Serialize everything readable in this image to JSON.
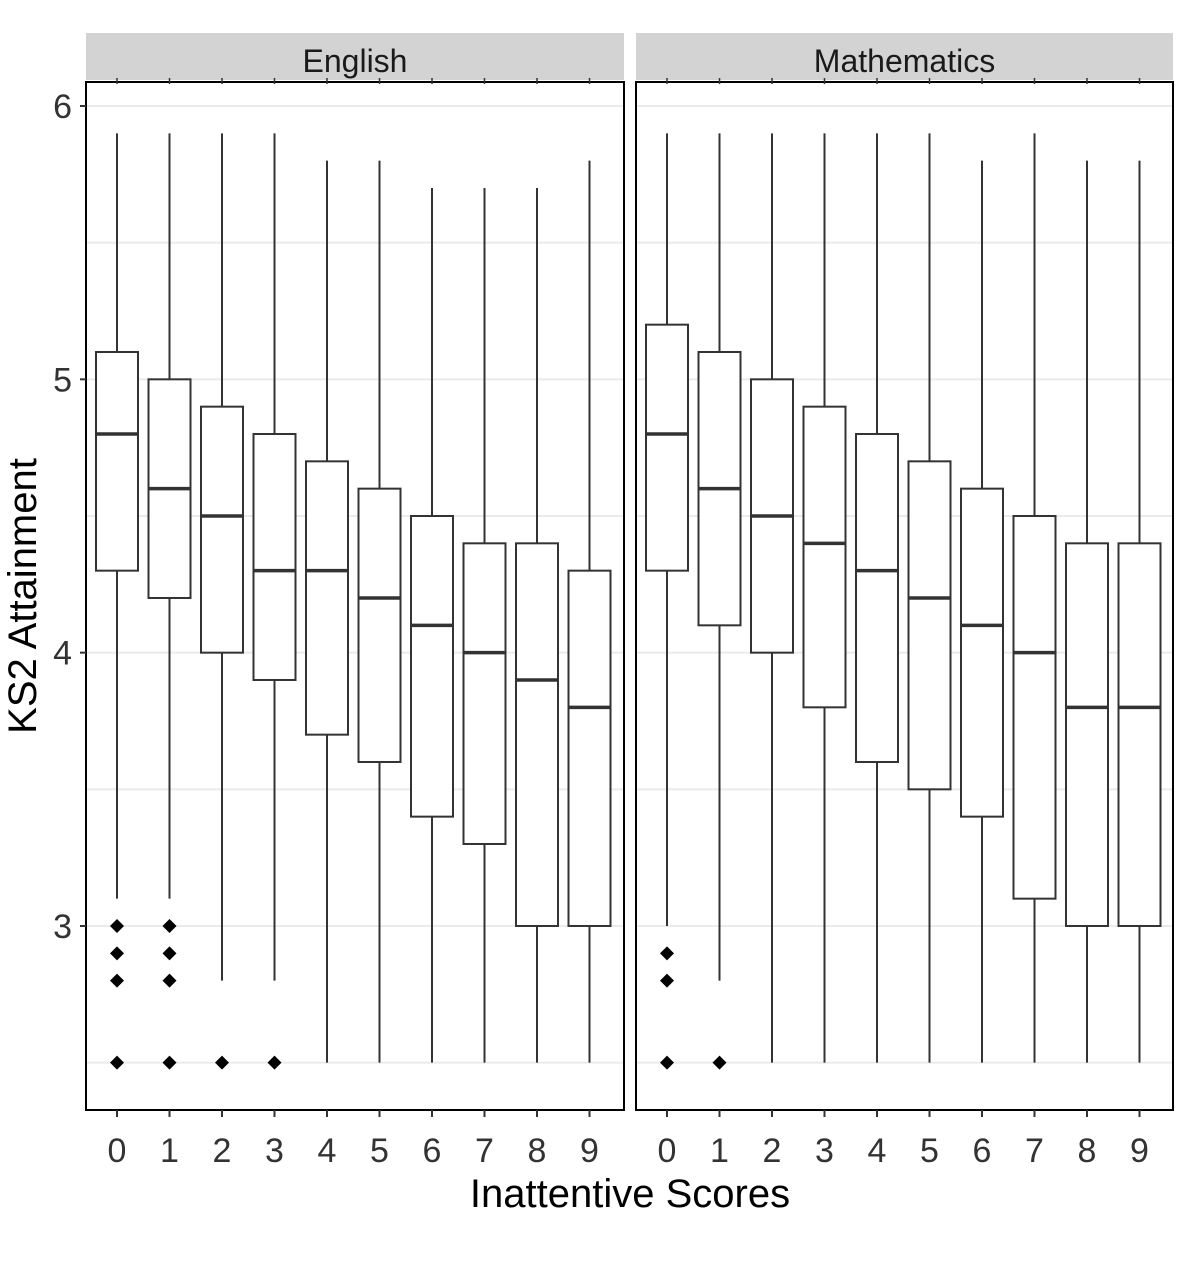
{
  "chart_data": {
    "type": "boxplot",
    "xlabel": "Inattentive Scores",
    "ylabel": "KS2 Attainment",
    "ylim": [
      2.33,
      6.1
    ],
    "yticks": [
      3,
      4,
      5,
      6
    ],
    "categories": [
      "0",
      "1",
      "2",
      "3",
      "4",
      "5",
      "6",
      "7",
      "8",
      "9"
    ],
    "grid": true,
    "panels": [
      {
        "name": "English",
        "boxes": [
          {
            "x": "0",
            "whisker_low": 3.1,
            "q1": 4.3,
            "median": 4.8,
            "q3": 5.1,
            "whisker_high": 5.9,
            "outliers": [
              3.0,
              2.9,
              2.8,
              2.5
            ]
          },
          {
            "x": "1",
            "whisker_low": 3.1,
            "q1": 4.2,
            "median": 4.6,
            "q3": 5.0,
            "whisker_high": 5.9,
            "outliers": [
              3.0,
              2.9,
              2.8,
              2.5
            ]
          },
          {
            "x": "2",
            "whisker_low": 2.8,
            "q1": 4.0,
            "median": 4.5,
            "q3": 4.9,
            "whisker_high": 5.9,
            "outliers": [
              2.5
            ]
          },
          {
            "x": "3",
            "whisker_low": 2.8,
            "q1": 3.9,
            "median": 4.3,
            "q3": 4.8,
            "whisker_high": 5.9,
            "outliers": [
              2.5
            ]
          },
          {
            "x": "4",
            "whisker_low": 2.5,
            "q1": 3.7,
            "median": 4.3,
            "q3": 4.7,
            "whisker_high": 5.8,
            "outliers": []
          },
          {
            "x": "5",
            "whisker_low": 2.5,
            "q1": 3.6,
            "median": 4.2,
            "q3": 4.6,
            "whisker_high": 5.8,
            "outliers": []
          },
          {
            "x": "6",
            "whisker_low": 2.5,
            "q1": 3.4,
            "median": 4.1,
            "q3": 4.5,
            "whisker_high": 5.7,
            "outliers": []
          },
          {
            "x": "7",
            "whisker_low": 2.5,
            "q1": 3.3,
            "median": 4.0,
            "q3": 4.4,
            "whisker_high": 5.7,
            "outliers": []
          },
          {
            "x": "8",
            "whisker_low": 2.5,
            "q1": 3.0,
            "median": 3.9,
            "q3": 4.4,
            "whisker_high": 5.7,
            "outliers": []
          },
          {
            "x": "9",
            "whisker_low": 2.5,
            "q1": 3.0,
            "median": 3.8,
            "q3": 4.3,
            "whisker_high": 5.8,
            "outliers": []
          }
        ]
      },
      {
        "name": "Mathematics",
        "boxes": [
          {
            "x": "0",
            "whisker_low": 3.0,
            "q1": 4.3,
            "median": 4.8,
            "q3": 5.2,
            "whisker_high": 5.9,
            "outliers": [
              2.9,
              2.8,
              2.5
            ]
          },
          {
            "x": "1",
            "whisker_low": 2.8,
            "q1": 4.1,
            "median": 4.6,
            "q3": 5.1,
            "whisker_high": 5.9,
            "outliers": [
              2.5
            ]
          },
          {
            "x": "2",
            "whisker_low": 2.5,
            "q1": 4.0,
            "median": 4.5,
            "q3": 5.0,
            "whisker_high": 5.9,
            "outliers": []
          },
          {
            "x": "3",
            "whisker_low": 2.5,
            "q1": 3.8,
            "median": 4.4,
            "q3": 4.9,
            "whisker_high": 5.9,
            "outliers": []
          },
          {
            "x": "4",
            "whisker_low": 2.5,
            "q1": 3.6,
            "median": 4.3,
            "q3": 4.8,
            "whisker_high": 5.9,
            "outliers": []
          },
          {
            "x": "5",
            "whisker_low": 2.5,
            "q1": 3.5,
            "median": 4.2,
            "q3": 4.7,
            "whisker_high": 5.9,
            "outliers": []
          },
          {
            "x": "6",
            "whisker_low": 2.5,
            "q1": 3.4,
            "median": 4.1,
            "q3": 4.6,
            "whisker_high": 5.8,
            "outliers": []
          },
          {
            "x": "7",
            "whisker_low": 2.5,
            "q1": 3.1,
            "median": 4.0,
            "q3": 4.5,
            "whisker_high": 5.9,
            "outliers": []
          },
          {
            "x": "8",
            "whisker_low": 2.5,
            "q1": 3.0,
            "median": 3.8,
            "q3": 4.4,
            "whisker_high": 5.8,
            "outliers": []
          },
          {
            "x": "9",
            "whisker_low": 2.5,
            "q1": 3.0,
            "median": 3.8,
            "q3": 4.4,
            "whisker_high": 5.8,
            "outliers": []
          }
        ]
      }
    ]
  },
  "colors": {
    "strip_background": "#d3d3d3",
    "panel_border": "#000000",
    "box_stroke": "#333333",
    "gridline": "#ebebeb",
    "outlier": "#000000"
  }
}
